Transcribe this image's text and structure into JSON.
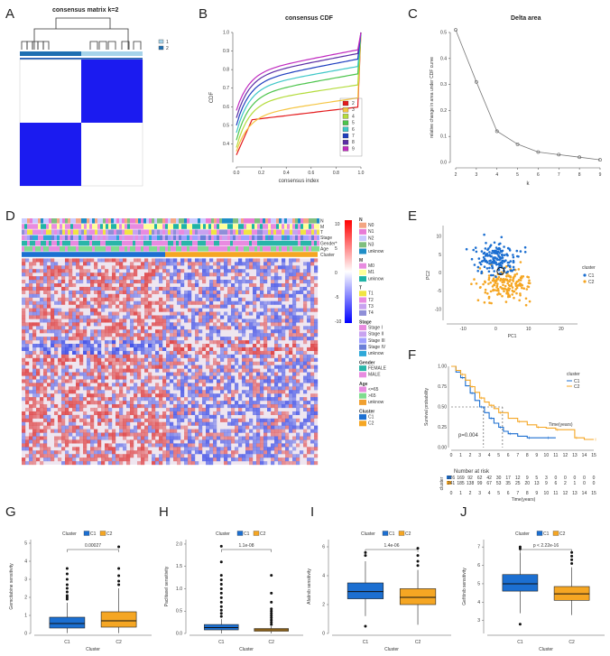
{
  "figure": {
    "panel_labels": [
      "A",
      "B",
      "C",
      "D",
      "E",
      "F",
      "G",
      "H",
      "I",
      "J"
    ]
  },
  "chart_data": [
    {
      "panel": "A",
      "type": "heatmap",
      "title": "consensus matrix k=2",
      "legend": [
        "1",
        "2"
      ],
      "colors": {
        "c1": "#a6d3ea",
        "c2": "#1f6fb2",
        "fill": "#1b1bf0"
      }
    },
    {
      "panel": "B",
      "type": "line",
      "title": "consensus CDF",
      "xlabel": "consensus index",
      "ylabel": "CDF",
      "xlim": [
        0,
        1
      ],
      "ylim": [
        0.3,
        1.0
      ],
      "xticks": [
        "0.0",
        "0.2",
        "0.4",
        "0.6",
        "0.8",
        "1.0"
      ],
      "yticks": [
        "0.4",
        "0.5",
        "0.6",
        "0.7",
        "0.8",
        "0.9",
        "1.0"
      ],
      "series": [
        {
          "name": "2",
          "color": "#e41a1c",
          "start": 0.34,
          "plateau": 0.52,
          "end": 0.6,
          "curve": "flat"
        },
        {
          "name": "3",
          "color": "#f5c542",
          "start": 0.36,
          "plateau": 0.55,
          "end": 0.65,
          "curve": "s"
        },
        {
          "name": "4",
          "color": "#b4dc3c",
          "start": 0.38,
          "plateau": 0.62,
          "end": 0.72,
          "curve": "s"
        },
        {
          "name": "5",
          "color": "#4cc44c",
          "start": 0.42,
          "plateau": 0.66,
          "end": 0.78,
          "curve": "s"
        },
        {
          "name": "6",
          "color": "#3fc8c8",
          "start": 0.46,
          "plateau": 0.7,
          "end": 0.82,
          "curve": "s"
        },
        {
          "name": "7",
          "color": "#1f3fbf",
          "start": 0.5,
          "plateau": 0.73,
          "end": 0.86,
          "curve": "s"
        },
        {
          "name": "8",
          "color": "#5b2ea6",
          "start": 0.54,
          "plateau": 0.76,
          "end": 0.89,
          "curve": "s"
        },
        {
          "name": "9",
          "color": "#c02ac0",
          "start": 0.58,
          "plateau": 0.78,
          "end": 0.91,
          "curve": "s"
        }
      ]
    },
    {
      "panel": "C",
      "type": "line",
      "title": "Delta area",
      "xlabel": "k",
      "ylabel": "relative change in area under CDF curve",
      "x": [
        2,
        3,
        4,
        5,
        6,
        7,
        8,
        9
      ],
      "y": [
        0.51,
        0.31,
        0.12,
        0.07,
        0.04,
        0.03,
        0.02,
        0.01
      ],
      "ylim": [
        0,
        0.5
      ],
      "yticks": [
        "0.0",
        "0.1",
        "0.2",
        "0.3",
        "0.4",
        "0.5"
      ]
    },
    {
      "panel": "D",
      "type": "heatmap",
      "annotation_rows": [
        "N",
        "M",
        "T",
        "Stage",
        "Gender*",
        "Age",
        "Cluster"
      ],
      "scale_ticks": [
        "10",
        "5",
        "0",
        "-5",
        "-10"
      ],
      "legend_groups": [
        {
          "title": "N",
          "items": [
            {
              "label": "N0",
              "color": "#f4a582"
            },
            {
              "label": "N1",
              "color": "#e87bd6"
            },
            {
              "label": "N2",
              "color": "#c9c9ff"
            },
            {
              "label": "N3",
              "color": "#7fbf7f"
            },
            {
              "label": "unknow",
              "color": "#1f8ec7"
            }
          ]
        },
        {
          "title": "M",
          "items": [
            {
              "label": "M0",
              "color": "#e88be0"
            },
            {
              "label": "M1",
              "color": "#ffff99"
            },
            {
              "label": "unknow",
              "color": "#1fb3a6"
            }
          ]
        },
        {
          "title": "T",
          "items": [
            {
              "label": "T1",
              "color": "#f0e442"
            },
            {
              "label": "T2",
              "color": "#e88be0"
            },
            {
              "label": "T3",
              "color": "#c8a2f0"
            },
            {
              "label": "T4",
              "color": "#8f8fd8"
            }
          ]
        },
        {
          "title": "Stage",
          "items": [
            {
              "label": "Stage I",
              "color": "#e88be0"
            },
            {
              "label": "Stage II",
              "color": "#c8a2f0"
            },
            {
              "label": "Stage III",
              "color": "#a0a0ff"
            },
            {
              "label": "Stage IV",
              "color": "#6a7fd8"
            },
            {
              "label": "unknow",
              "color": "#2ea8d8"
            }
          ]
        },
        {
          "title": "Gender",
          "items": [
            {
              "label": "FEMALE",
              "color": "#29b5a8"
            },
            {
              "label": "MALE",
              "color": "#e88be0"
            }
          ]
        },
        {
          "title": "Age",
          "items": [
            {
              "label": "<=65",
              "color": "#e88be0"
            },
            {
              "label": ">65",
              "color": "#7fdc8f"
            },
            {
              "label": "unknow",
              "color": "#f0a030"
            }
          ]
        },
        {
          "title": "Cluster",
          "items": [
            {
              "label": "C1",
              "color": "#1c6fd1"
            },
            {
              "label": "C2",
              "color": "#f5a623"
            }
          ]
        }
      ]
    },
    {
      "panel": "E",
      "type": "scatter",
      "xlabel": "PC1",
      "ylabel": "PC2",
      "xticks": [
        "-10",
        "0",
        "10",
        "20"
      ],
      "yticks": [
        "10",
        "5",
        "0",
        "-5",
        "-10"
      ],
      "xlim": [
        -15,
        25
      ],
      "ylim": [
        -13,
        13
      ],
      "legend_title": "cluster",
      "series": [
        {
          "name": "C1",
          "color": "#1c6fd1",
          "center": [
            0,
            4
          ],
          "spread": [
            7,
            4.5
          ],
          "n": 170
        },
        {
          "name": "C2",
          "color": "#f5a623",
          "center": [
            3,
            -3
          ],
          "spread": [
            8,
            4.5
          ],
          "n": 170
        }
      ]
    },
    {
      "panel": "F",
      "type": "line",
      "xlabel": "Time(years)",
      "ylabel": "Survival probability",
      "legend_title": "cluster",
      "pvalue": "p=0.004",
      "xticks": [
        "0",
        "1",
        "2",
        "3",
        "4",
        "5",
        "6",
        "7",
        "8",
        "9",
        "10",
        "11",
        "12",
        "13",
        "14",
        "15"
      ],
      "yticks": [
        "0.00",
        "0.25",
        "0.50",
        "0.75",
        "1.00"
      ],
      "series": [
        {
          "name": "C1",
          "color": "#1c6fd1",
          "t": [
            0,
            0.5,
            1,
            1.5,
            2,
            2.5,
            3,
            3.5,
            4,
            4.5,
            5,
            5.5,
            6,
            7,
            8,
            9,
            10,
            11
          ],
          "s": [
            1,
            0.93,
            0.86,
            0.76,
            0.67,
            0.58,
            0.5,
            0.43,
            0.36,
            0.3,
            0.25,
            0.2,
            0.17,
            0.14,
            0.12,
            0.12,
            0.12,
            0.12
          ]
        },
        {
          "name": "C2",
          "color": "#f5a623",
          "t": [
            0,
            0.5,
            1,
            1.5,
            2,
            2.5,
            3,
            3.5,
            4,
            4.5,
            5,
            6,
            7,
            8,
            9,
            10,
            11,
            12,
            13,
            14,
            15
          ],
          "s": [
            1,
            0.95,
            0.9,
            0.83,
            0.75,
            0.68,
            0.61,
            0.56,
            0.52,
            0.48,
            0.43,
            0.36,
            0.32,
            0.28,
            0.25,
            0.24,
            0.22,
            0.22,
            0.12,
            0.1,
            0.1
          ]
        }
      ],
      "median_lines": [
        3.4,
        5.4
      ],
      "risk_table": {
        "title": "Number at risk",
        "ylabel": "cluster",
        "rows": [
          {
            "name": "C1",
            "color": "#1c6fd1",
            "values": [
              "226",
              "169",
              "92",
              "62",
              "42",
              "30",
              "17",
              "12",
              "9",
              "5",
              "3",
              "0",
              "0",
              "0",
              "0",
              "0"
            ]
          },
          {
            "name": "C2",
            "color": "#f5a623",
            "values": [
              "241",
              "185",
              "138",
              "99",
              "67",
              "53",
              "35",
              "25",
              "20",
              "13",
              "9",
              "6",
              "2",
              "1",
              "0",
              "0"
            ]
          }
        ]
      }
    },
    {
      "panel": "G",
      "type": "box",
      "legend_title": "Cluster",
      "xlabel": "Cluster",
      "ylabel": "Gemcitabine sensitivity",
      "pvalue": "0.00027",
      "ylim": [
        0,
        5.2
      ],
      "yticks": [
        "0",
        "1",
        "2",
        "3",
        "4",
        "5"
      ],
      "boxes": [
        {
          "name": "C1",
          "color": "#1c6fd1",
          "q1": 0.3,
          "median": 0.55,
          "q3": 0.9,
          "wlo": 0.02,
          "whi": 1.7,
          "outliers": [
            1.9,
            2.0,
            2.1,
            2.3,
            2.5,
            2.7,
            3.0,
            3.3,
            3.6
          ]
        },
        {
          "name": "C2",
          "color": "#f5a623",
          "q1": 0.35,
          "median": 0.7,
          "q3": 1.2,
          "wlo": 0.02,
          "whi": 2.5,
          "outliers": [
            2.7,
            2.9,
            3.2,
            3.6,
            4.8
          ]
        }
      ]
    },
    {
      "panel": "H",
      "type": "box",
      "legend_title": "Cluster",
      "xlabel": "Cluster",
      "ylabel": "Paclitaxel sensitivity",
      "pvalue": "1.1e-08",
      "ylim": [
        0,
        2.1
      ],
      "yticks": [
        "0.0",
        "0.5",
        "1.0",
        "1.5",
        "2.0"
      ],
      "boxes": [
        {
          "name": "C1",
          "color": "#1c6fd1",
          "q1": 0.08,
          "median": 0.13,
          "q3": 0.2,
          "wlo": 0.0,
          "whi": 0.32,
          "outliers": [
            0.38,
            0.45,
            0.52,
            0.6,
            0.7,
            0.8,
            0.9,
            1.0,
            1.1,
            1.2,
            1.3,
            1.6,
            1.95
          ]
        },
        {
          "name": "C2",
          "color": "#f5a623",
          "q1": 0.05,
          "median": 0.08,
          "q3": 0.11,
          "wlo": 0.0,
          "whi": 0.16,
          "outliers": [
            0.2,
            0.25,
            0.3,
            0.35,
            0.4,
            0.45,
            0.5,
            0.55,
            0.7,
            0.9,
            1.3
          ]
        }
      ]
    },
    {
      "panel": "I",
      "type": "box",
      "legend_title": "Cluster",
      "xlabel": "Cluster",
      "ylabel": "Afatinib sensitivity",
      "pvalue": "1.4e-06",
      "ylim": [
        0,
        6.5
      ],
      "yticks": [
        "0",
        "2",
        "4",
        "6"
      ],
      "boxes": [
        {
          "name": "C1",
          "color": "#1c6fd1",
          "q1": 2.4,
          "median": 2.9,
          "q3": 3.5,
          "wlo": 1.2,
          "whi": 5.0,
          "outliers": [
            0.5,
            5.4,
            5.6
          ]
        },
        {
          "name": "C2",
          "color": "#f5a623",
          "q1": 2.0,
          "median": 2.5,
          "q3": 3.1,
          "wlo": 0.6,
          "whi": 4.4,
          "outliers": [
            4.7,
            5.0,
            5.4,
            5.9
          ]
        }
      ]
    },
    {
      "panel": "J",
      "type": "box",
      "legend_title": "Cluster",
      "xlabel": "Cluster",
      "ylabel": "Gefitinib sensitivity",
      "pvalue": "p < 2.22e-16",
      "ylim": [
        2.3,
        7.4
      ],
      "yticks": [
        "3",
        "4",
        "5",
        "6",
        "7"
      ],
      "boxes": [
        {
          "name": "C1",
          "color": "#1c6fd1",
          "q1": 4.6,
          "median": 5.0,
          "q3": 5.5,
          "wlo": 3.4,
          "whi": 6.7,
          "outliers": [
            2.8,
            6.9,
            7.0
          ]
        },
        {
          "name": "C2",
          "color": "#f5a623",
          "q1": 4.1,
          "median": 4.45,
          "q3": 4.85,
          "wlo": 3.3,
          "whi": 5.9,
          "outliers": [
            6.1,
            6.3,
            6.5,
            6.7
          ]
        }
      ]
    }
  ]
}
